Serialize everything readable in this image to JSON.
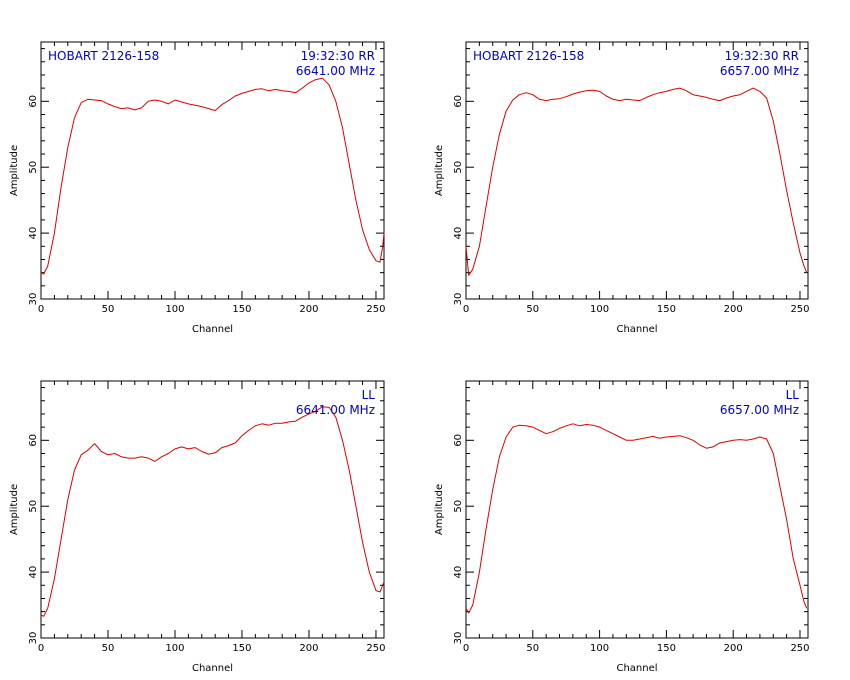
{
  "colors": {
    "trace": "#dd0000",
    "annotation": "#0000cc",
    "axes": "#000000",
    "background": "#ffffff"
  },
  "chart_data": [
    {
      "type": "line",
      "xlabel": "Channel",
      "ylabel": "Amplitude",
      "xlim": [
        0,
        256
      ],
      "ylim": [
        30,
        69
      ],
      "xticks": [
        0,
        50,
        100,
        150,
        200,
        250
      ],
      "yticks": [
        30,
        40,
        50,
        60
      ],
      "annotations": {
        "top_left": "HOBART 2126-158",
        "top_right": "19:32:30 RR",
        "frequency": "6641.00 MHz"
      },
      "series": [
        {
          "x": [
            0,
            2,
            5,
            10,
            15,
            20,
            25,
            30,
            35,
            40,
            45,
            50,
            55,
            60,
            65,
            70,
            75,
            80,
            85,
            90,
            95,
            100,
            105,
            110,
            115,
            120,
            125,
            130,
            135,
            140,
            145,
            150,
            155,
            160,
            165,
            170,
            175,
            180,
            185,
            190,
            195,
            200,
            205,
            210,
            215,
            220,
            225,
            230,
            235,
            240,
            245,
            250,
            253,
            255,
            256
          ],
          "y": [
            34,
            33.8,
            35,
            40,
            47,
            53,
            57.5,
            59.8,
            60.3,
            60.2,
            60.1,
            59.6,
            59.2,
            58.9,
            59.0,
            58.7,
            59.0,
            60.0,
            60.2,
            60.0,
            59.6,
            60.2,
            59.9,
            59.6,
            59.4,
            59.2,
            58.9,
            58.6,
            59.5,
            60.1,
            60.8,
            61.2,
            61.5,
            61.8,
            61.9,
            61.6,
            61.8,
            61.6,
            61.5,
            61.3,
            62.0,
            62.8,
            63.3,
            63.5,
            62.5,
            60.0,
            56.0,
            50.5,
            45.0,
            40.5,
            37.5,
            35.8,
            35.6,
            38.0,
            40.0
          ]
        }
      ]
    },
    {
      "type": "line",
      "xlabel": "Channel",
      "ylabel": "Amplitude",
      "xlim": [
        0,
        256
      ],
      "ylim": [
        30,
        69
      ],
      "xticks": [
        0,
        50,
        100,
        150,
        200,
        250
      ],
      "yticks": [
        30,
        40,
        50,
        60
      ],
      "annotations": {
        "top_left": "HOBART 2126-158",
        "top_right": "19:32:30 RR",
        "frequency": "6657.00 MHz"
      },
      "series": [
        {
          "x": [
            0,
            2,
            5,
            10,
            15,
            20,
            25,
            30,
            35,
            40,
            45,
            50,
            55,
            60,
            65,
            70,
            75,
            80,
            85,
            90,
            95,
            100,
            105,
            110,
            115,
            120,
            125,
            130,
            135,
            140,
            145,
            150,
            155,
            160,
            165,
            170,
            175,
            180,
            185,
            190,
            195,
            200,
            205,
            210,
            215,
            220,
            225,
            230,
            235,
            240,
            245,
            250,
            253,
            255
          ],
          "y": [
            38,
            33.6,
            34.5,
            38,
            44,
            50,
            55,
            58.5,
            60.2,
            61.0,
            61.3,
            61.0,
            60.3,
            60.1,
            60.3,
            60.4,
            60.7,
            61.1,
            61.4,
            61.6,
            61.7,
            61.5,
            60.8,
            60.3,
            60.1,
            60.3,
            60.2,
            60.1,
            60.6,
            61.0,
            61.3,
            61.5,
            61.8,
            62.0,
            61.6,
            61.0,
            60.8,
            60.6,
            60.3,
            60.1,
            60.5,
            60.8,
            61.0,
            61.5,
            62.0,
            61.5,
            60.5,
            57.0,
            52.0,
            46.5,
            41.5,
            37.0,
            35.0,
            34.0
          ]
        }
      ]
    },
    {
      "type": "line",
      "xlabel": "Channel",
      "ylabel": "Amplitude",
      "xlim": [
        0,
        256
      ],
      "ylim": [
        30,
        69
      ],
      "xticks": [
        0,
        50,
        100,
        150,
        200,
        250
      ],
      "yticks": [
        30,
        40,
        50,
        60
      ],
      "annotations": {
        "top_left": "",
        "top_right": "LL",
        "frequency": "6641.00 MHz"
      },
      "series": [
        {
          "x": [
            0,
            2,
            5,
            10,
            15,
            20,
            25,
            30,
            35,
            40,
            45,
            50,
            55,
            60,
            65,
            70,
            75,
            80,
            85,
            90,
            95,
            100,
            105,
            110,
            115,
            120,
            125,
            130,
            135,
            140,
            145,
            150,
            155,
            160,
            165,
            170,
            175,
            180,
            185,
            190,
            195,
            200,
            205,
            210,
            215,
            220,
            225,
            230,
            235,
            240,
            245,
            250,
            253,
            255,
            256
          ],
          "y": [
            33.5,
            33.3,
            34.5,
            39,
            45,
            51,
            55.5,
            57.8,
            58.5,
            59.5,
            58.3,
            57.8,
            58.0,
            57.5,
            57.3,
            57.3,
            57.5,
            57.3,
            56.8,
            57.5,
            58.0,
            58.7,
            59.0,
            58.7,
            58.9,
            58.3,
            57.9,
            58.1,
            58.9,
            59.2,
            59.6,
            60.7,
            61.5,
            62.2,
            62.5,
            62.3,
            62.6,
            62.6,
            62.8,
            62.9,
            63.5,
            64.0,
            64.4,
            65.1,
            65.0,
            63.5,
            60.0,
            55.5,
            50.0,
            44.5,
            40.0,
            37.2,
            37.0,
            38.0,
            38.5
          ]
        }
      ]
    },
    {
      "type": "line",
      "xlabel": "Channel",
      "ylabel": "Amplitude",
      "xlim": [
        0,
        256
      ],
      "ylim": [
        30,
        69
      ],
      "xticks": [
        0,
        50,
        100,
        150,
        200,
        250
      ],
      "yticks": [
        30,
        40,
        50,
        60
      ],
      "annotations": {
        "top_left": "",
        "top_right": "LL",
        "frequency": "6657.00 MHz"
      },
      "series": [
        {
          "x": [
            0,
            2,
            5,
            10,
            15,
            20,
            25,
            30,
            35,
            40,
            45,
            50,
            55,
            60,
            65,
            70,
            75,
            80,
            85,
            90,
            95,
            100,
            105,
            110,
            115,
            120,
            125,
            130,
            135,
            140,
            145,
            150,
            155,
            160,
            165,
            170,
            175,
            180,
            185,
            190,
            195,
            200,
            205,
            210,
            215,
            220,
            225,
            230,
            235,
            240,
            245,
            250,
            253,
            255
          ],
          "y": [
            34.5,
            33.8,
            35,
            40,
            46.5,
            52.5,
            57.5,
            60.5,
            62.0,
            62.3,
            62.2,
            62.0,
            61.5,
            61.0,
            61.3,
            61.8,
            62.2,
            62.5,
            62.2,
            62.4,
            62.3,
            62.0,
            61.5,
            61.0,
            60.5,
            60.0,
            60.0,
            60.2,
            60.4,
            60.6,
            60.3,
            60.5,
            60.6,
            60.7,
            60.4,
            60.0,
            59.3,
            58.8,
            59.0,
            59.6,
            59.8,
            60.0,
            60.1,
            60.0,
            60.2,
            60.5,
            60.2,
            58.0,
            53.0,
            48.0,
            42.0,
            38.0,
            35.5,
            34.5
          ]
        }
      ]
    }
  ]
}
